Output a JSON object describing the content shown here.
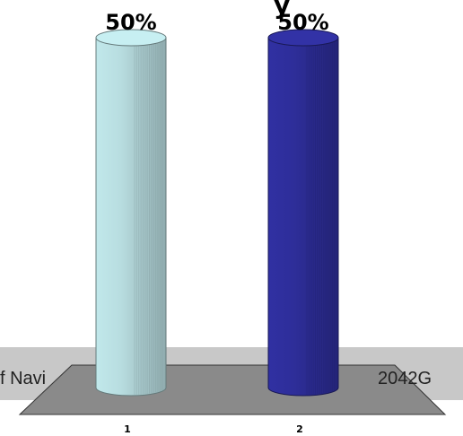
{
  "chart_data": {
    "type": "bar",
    "style": "3d-cylinder",
    "categories": [
      "1",
      "2"
    ],
    "values": [
      50,
      50
    ],
    "data_labels": [
      "50%",
      "50%"
    ],
    "colors": [
      "#b8dde0",
      "#2e2e9a"
    ],
    "floor_color": "#8a8a8a",
    "ylim": [
      0,
      50
    ],
    "grid": false,
    "title": "",
    "xlabel": "",
    "ylabel": ""
  },
  "overlay": {
    "left_text": "f Navi",
    "right_text": "2042G",
    "banner_color": "#c8c8c8",
    "top_fragment": "y"
  }
}
